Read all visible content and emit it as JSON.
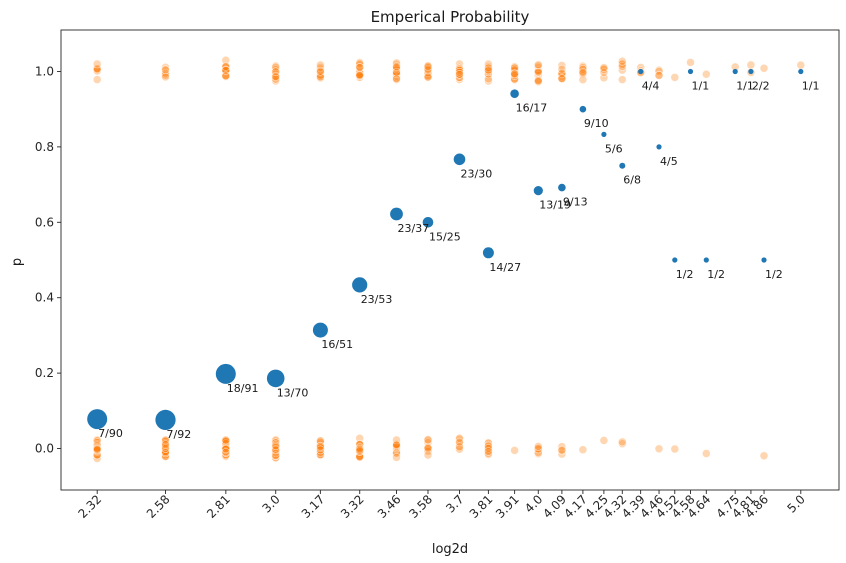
{
  "chart_data": {
    "type": "scatter",
    "title": "Emperical Probability",
    "xlabel": "log2d",
    "ylabel": "p",
    "ylim": [
      -0.11,
      1.11
    ],
    "yticks": [
      0.0,
      0.2,
      0.4,
      0.6,
      0.8,
      1.0
    ],
    "ytick_labels": [
      "0.0",
      "0.2",
      "0.4",
      "0.6",
      "0.8",
      "1.0"
    ],
    "grid": false,
    "legend": "none",
    "colors": {
      "summary": "#1f77b4",
      "raw": "#ff7f0e"
    },
    "x_categories": [
      {
        "x": 2.32,
        "label": "2.32"
      },
      {
        "x": 2.58,
        "label": "2.58"
      },
      {
        "x": 2.81,
        "label": "2.81"
      },
      {
        "x": 3.0,
        "label": "3.0"
      },
      {
        "x": 3.17,
        "label": "3.17"
      },
      {
        "x": 3.32,
        "label": "3.32"
      },
      {
        "x": 3.46,
        "label": "3.46"
      },
      {
        "x": 3.58,
        "label": "3.58"
      },
      {
        "x": 3.7,
        "label": "3.7"
      },
      {
        "x": 3.81,
        "label": "3.81"
      },
      {
        "x": 3.91,
        "label": "3.91"
      },
      {
        "x": 4.0,
        "label": "4.0"
      },
      {
        "x": 4.09,
        "label": "4.09"
      },
      {
        "x": 4.17,
        "label": "4.17"
      },
      {
        "x": 4.25,
        "label": "4.25"
      },
      {
        "x": 4.32,
        "label": "4.32"
      },
      {
        "x": 4.39,
        "label": "4.39"
      },
      {
        "x": 4.46,
        "label": "4.46"
      },
      {
        "x": 4.52,
        "label": "4.52"
      },
      {
        "x": 4.58,
        "label": "4.58"
      },
      {
        "x": 4.64,
        "label": "4.64"
      },
      {
        "x": 4.75,
        "label": "4.75"
      },
      {
        "x": 4.81,
        "label": "4.81"
      },
      {
        "x": 4.86,
        "label": "4.86"
      },
      {
        "x": 5.0,
        "label": "5.0"
      }
    ],
    "summary_points": [
      {
        "x": 2.32,
        "p": 0.078,
        "label": "7/90",
        "n": 90
      },
      {
        "x": 2.58,
        "p": 0.076,
        "label": "7/92",
        "n": 92
      },
      {
        "x": 2.81,
        "p": 0.198,
        "label": "18/91",
        "n": 91
      },
      {
        "x": 3.0,
        "p": 0.186,
        "label": "13/70",
        "n": 70
      },
      {
        "x": 3.17,
        "p": 0.314,
        "label": "16/51",
        "n": 51
      },
      {
        "x": 3.32,
        "p": 0.434,
        "label": "23/53",
        "n": 53
      },
      {
        "x": 3.46,
        "p": 0.622,
        "label": "23/37",
        "n": 37
      },
      {
        "x": 3.58,
        "p": 0.6,
        "label": "15/25",
        "n": 25
      },
      {
        "x": 3.7,
        "p": 0.767,
        "label": "23/30",
        "n": 30
      },
      {
        "x": 3.81,
        "p": 0.519,
        "label": "14/27",
        "n": 27
      },
      {
        "x": 3.91,
        "p": 0.941,
        "label": "16/17",
        "n": 17
      },
      {
        "x": 4.0,
        "p": 0.684,
        "label": "13/19",
        "n": 19
      },
      {
        "x": 4.09,
        "p": 0.692,
        "label": "9/13",
        "n": 13
      },
      {
        "x": 4.17,
        "p": 0.9,
        "label": "9/10",
        "n": 10
      },
      {
        "x": 4.25,
        "p": 0.833,
        "label": "5/6",
        "n": 6
      },
      {
        "x": 4.32,
        "p": 0.75,
        "label": "6/8",
        "n": 8
      },
      {
        "x": 4.39,
        "p": 1.0,
        "label": "4/4",
        "n": 4
      },
      {
        "x": 4.46,
        "p": 0.8,
        "label": "4/5",
        "n": 5
      },
      {
        "x": 4.52,
        "p": 0.5,
        "label": "1/2",
        "n": 2
      },
      {
        "x": 4.58,
        "p": 1.0,
        "label": "1/1",
        "n": 1
      },
      {
        "x": 4.64,
        "p": 0.5,
        "label": "1/2",
        "n": 2
      },
      {
        "x": 4.75,
        "p": 1.0,
        "label": "1/1",
        "n": 1
      },
      {
        "x": 4.81,
        "p": 1.0,
        "label": "2/2",
        "n": 2
      },
      {
        "x": 4.86,
        "p": 0.5,
        "label": "1/2",
        "n": 2
      },
      {
        "x": 5.0,
        "p": 1.0,
        "label": "1/1",
        "n": 1
      }
    ]
  }
}
